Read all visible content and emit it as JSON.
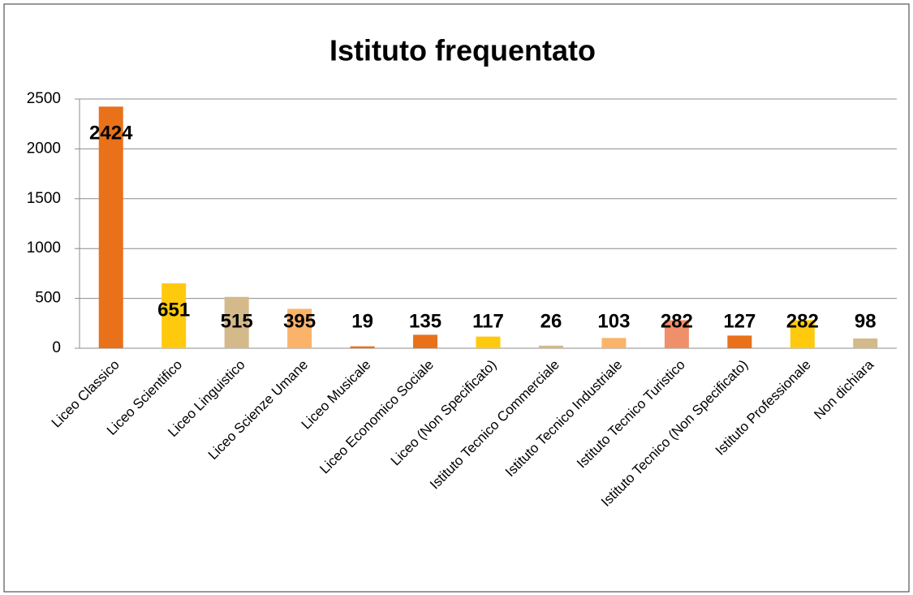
{
  "chart_data": {
    "type": "bar",
    "title": "Istituto frequentato",
    "categories": [
      "Liceo Classico",
      "Liceo Scientifico",
      "Liceo Linguistico",
      "Liceo Scienze Umane",
      "Liceo Musicale",
      "Liceo Economico Sociale",
      "Liceo (Non Specificato)",
      "Istituto Tecnico Commerciale",
      "Istituto Tecnico Industriale",
      "Istituto Tecnico Turistico",
      "Istituto Tecnico (Non Specificato)",
      "Istituto Professionale",
      "Non dichiara"
    ],
    "values": [
      2424,
      651,
      515,
      395,
      19,
      135,
      117,
      26,
      103,
      282,
      127,
      282,
      98
    ],
    "colors": [
      "#e8711a",
      "#ffc90e",
      "#d4b98a",
      "#fbb36a",
      "#e8711a",
      "#e8711a",
      "#ffc90e",
      "#d4b98a",
      "#fbb36a",
      "#f0906a",
      "#e8711a",
      "#ffc90e",
      "#d4b98a"
    ],
    "ylim": [
      0,
      2500
    ],
    "yticks": [
      0,
      500,
      1000,
      1500,
      2000,
      2500
    ],
    "grid": true
  }
}
